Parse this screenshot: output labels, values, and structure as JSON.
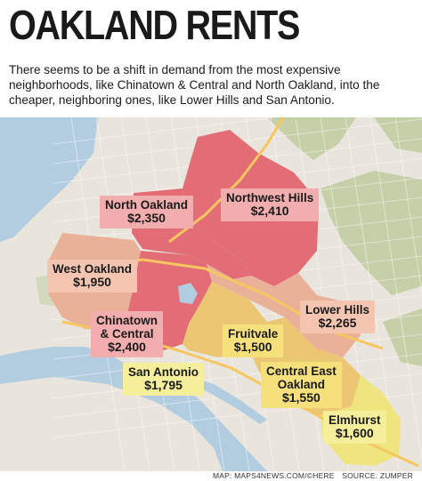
{
  "title": "OAKLAND RENTS",
  "subtitle": "There seems to be a shift in demand from the most expensive neighborhoods, like Chinatown & Central and North Oakland, into the cheaper, neighboring ones, like Lower Hills and San Antonio.",
  "colors": {
    "water": "#b3cde0",
    "land": "#e9e5dc",
    "park": "#c5d0a8",
    "road": "#ffffff",
    "tier_high": "#e26d76",
    "tier_mid_high": "#e8948c",
    "tier_mid": "#eab199",
    "tier_low": "#ecc773",
    "tier_lowest": "#eee57e",
    "label_high_bg": "#f2aeae",
    "label_mid_bg": "#f4c6b2",
    "label_low_bg": "#f6e07c",
    "label_lowest_bg": "#f5ef9c"
  },
  "neighborhoods": [
    {
      "name": "North Oakland",
      "rent": "$2,350",
      "tier": "high"
    },
    {
      "name": "Northwest Hills",
      "rent": "$2,410",
      "tier": "high"
    },
    {
      "name": "West Oakland",
      "rent": "$1,950",
      "tier": "mid"
    },
    {
      "name": "Lower Hills",
      "rent": "$2,265",
      "tier": "mid"
    },
    {
      "name": "Chinatown",
      "name2": "& Central",
      "rent": "$2,400",
      "tier": "high"
    },
    {
      "name": "Fruitvale",
      "rent": "$1,500",
      "tier": "low"
    },
    {
      "name": "San Antonio",
      "rent": "$1,795",
      "tier": "low"
    },
    {
      "name": "Central East",
      "name2": "Oakland",
      "rent": "$1,550",
      "tier": "low"
    },
    {
      "name": "Elmhurst",
      "rent": "$1,600",
      "tier": "lowest"
    }
  ],
  "credits": {
    "map": "MAP: MAPS4NEWS.COM/©HERE",
    "source": "SOURCE: ZUMPER"
  }
}
